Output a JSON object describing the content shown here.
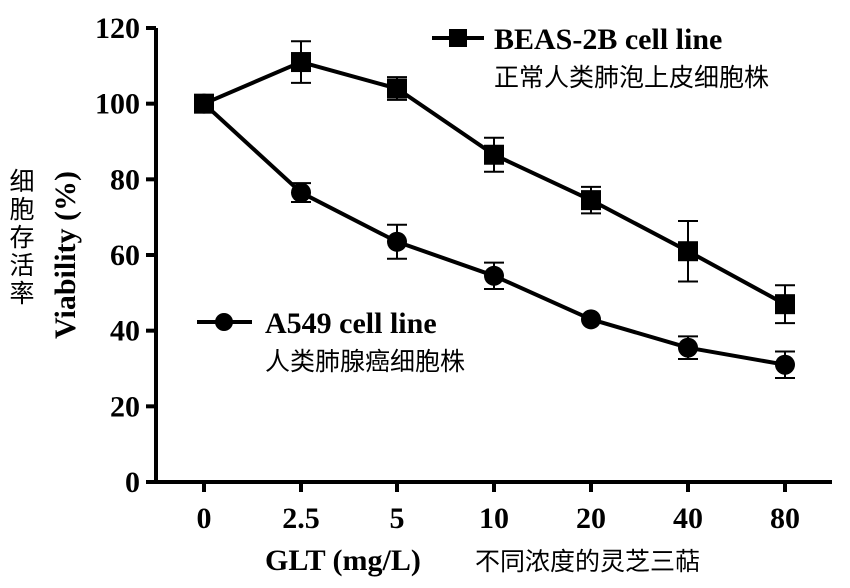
{
  "chart_data": {
    "type": "line",
    "categories": [
      "0",
      "2.5",
      "5",
      "10",
      "20",
      "40",
      "80"
    ],
    "xlabel": "GLT (mg/L)",
    "xlabel_cn": "不同浓度的灵芝三萜",
    "ylabel": "Viability (%)",
    "ylabel_cn": "细胞存活率",
    "ylim": [
      0,
      120
    ],
    "yticks": [
      0,
      20,
      40,
      60,
      80,
      100,
      120
    ],
    "grid": false,
    "series": [
      {
        "name": "BEAS-2B cell line",
        "name_cn": "正常人类肺泡上皮细胞株",
        "marker": "square",
        "values": [
          100,
          111,
          104,
          86.5,
          74.5,
          61,
          47
        ],
        "errors": [
          0,
          5.5,
          3,
          4.5,
          3.5,
          8,
          5
        ]
      },
      {
        "name": "A549 cell line",
        "name_cn": "人类肺腺癌细胞株",
        "marker": "circle",
        "values": [
          100,
          76.5,
          63.5,
          54.5,
          43,
          35.5,
          31
        ],
        "errors": [
          0,
          2.5,
          4.5,
          3.5,
          0,
          3,
          3.5
        ]
      }
    ]
  }
}
